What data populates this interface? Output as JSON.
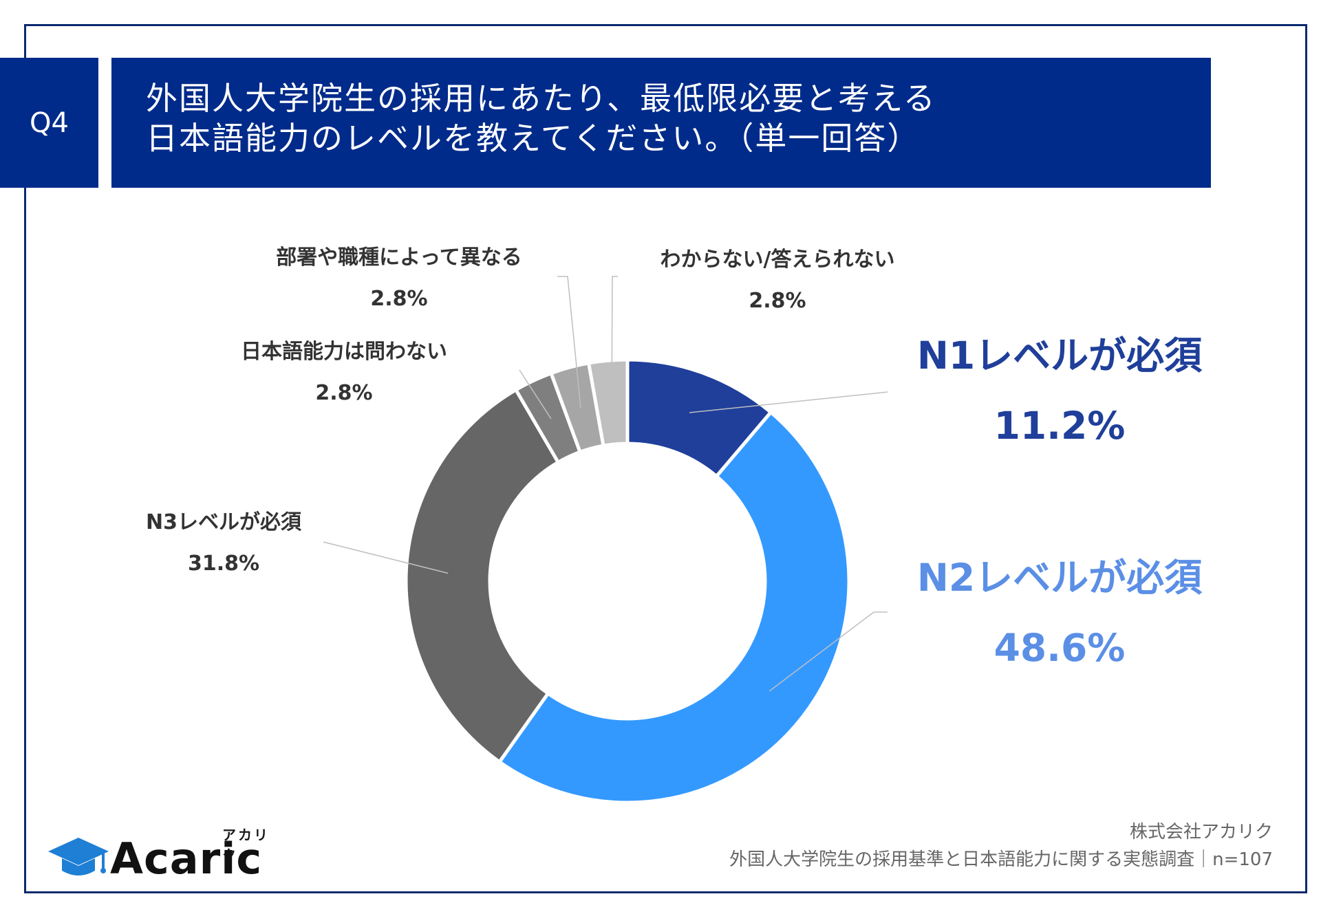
{
  "badge": "Q4",
  "title": {
    "line1": "外国人大学院生の採用にあたり、最低限必要と考える",
    "line2": "日本語能力のレベルを教えてください。（単一回答）"
  },
  "chart_data": {
    "type": "pie",
    "style": "donut",
    "title": "外国人大学院生の採用にあたり、最低限必要と考える日本語能力のレベルを教えてください。（単一回答）",
    "slices": [
      {
        "label": "N1レベルが必須",
        "value": 11.2,
        "display": "11.2%",
        "color": "#1f3f9a"
      },
      {
        "label": "N2レベルが必須",
        "value": 48.6,
        "display": "48.6%",
        "color": "#3399ff"
      },
      {
        "label": "N3レベルが必須",
        "value": 31.8,
        "display": "31.8%",
        "color": "#666666"
      },
      {
        "label": "日本語能力は問わない",
        "value": 2.8,
        "display": "2.8%",
        "color": "#7f7f7f"
      },
      {
        "label": "部署や職種によって異なる",
        "value": 2.8,
        "display": "2.8%",
        "color": "#a6a6a6"
      },
      {
        "label": "わからない/答えられない",
        "value": 2.8,
        "display": "2.8%",
        "color": "#bfbfbf"
      }
    ]
  },
  "label_colors": {
    "n1": "#1f3f9a",
    "n2": "#5b8fe6",
    "default": "#333333"
  },
  "logo": {
    "word": "Acaric",
    "kana": "アカリク"
  },
  "footer": {
    "company": "株式会社アカリク",
    "survey": "外国人大学院生の採用基準と日本語能力に関する実態調査｜n=107"
  }
}
